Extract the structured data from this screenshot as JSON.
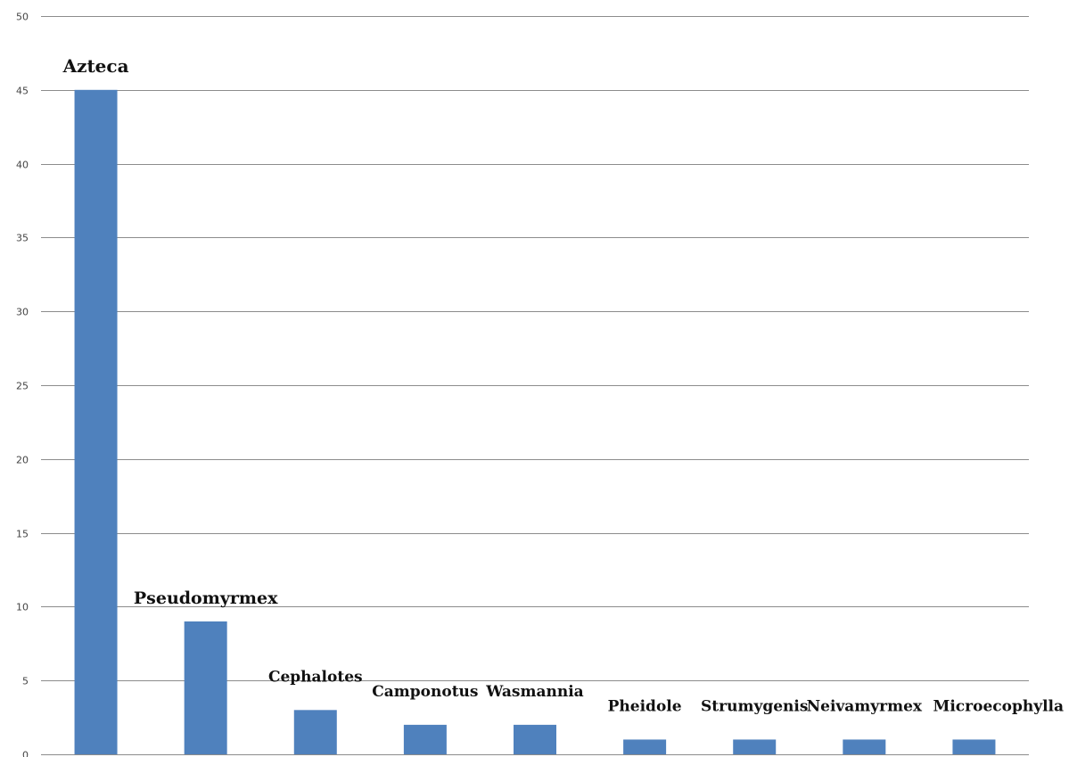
{
  "chart_data": {
    "type": "bar",
    "title": "",
    "xlabel": "",
    "ylabel": "",
    "ylim": [
      0,
      50
    ],
    "yticks": [
      0,
      5,
      10,
      15,
      20,
      25,
      30,
      35,
      40,
      45,
      50
    ],
    "grid": true,
    "bar_color": "#4f81bd",
    "categories": [
      "Azteca",
      "Pseudomyrmex",
      "Cephalotes",
      "Camponotus",
      "Wasmannia",
      "Pheidole",
      "Strumygenis",
      "Neivamyrmex",
      "Microecophylla"
    ],
    "values": [
      45,
      9,
      3,
      2,
      2,
      1,
      1,
      1,
      1
    ]
  }
}
